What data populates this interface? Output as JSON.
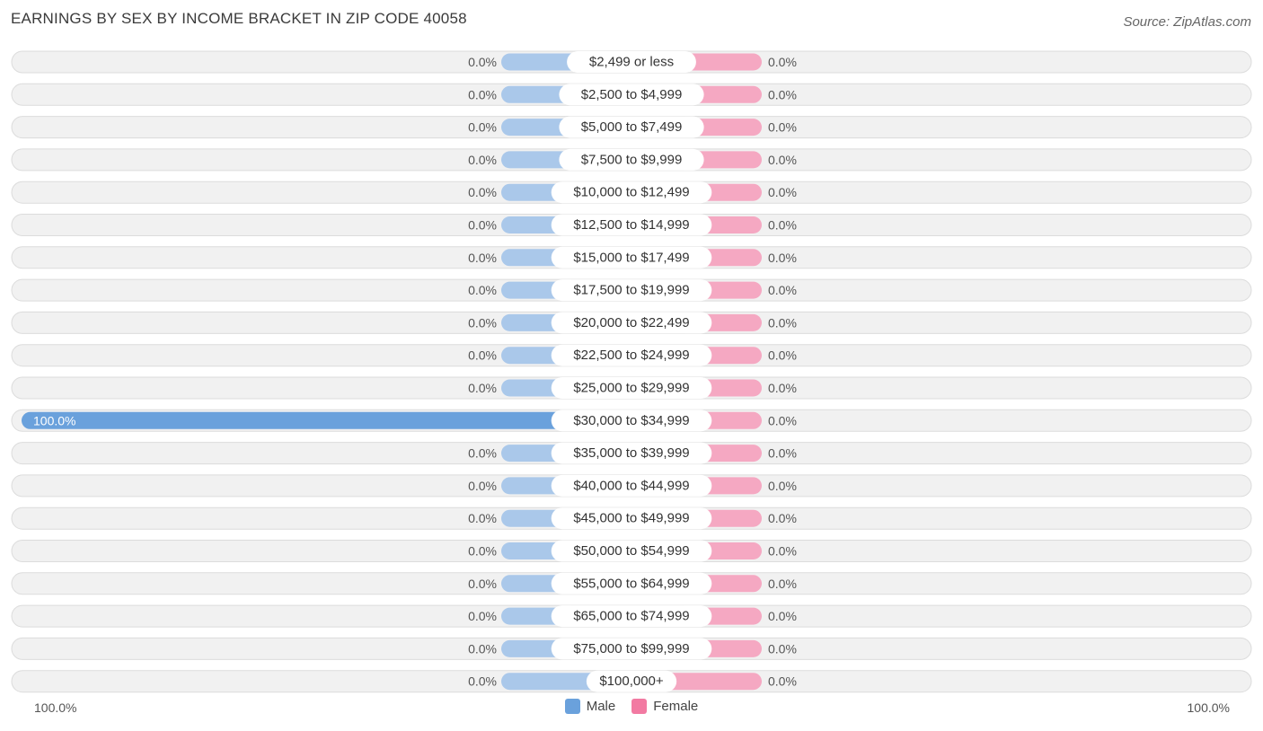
{
  "header": {
    "title": "EARNINGS BY SEX BY INCOME BRACKET IN ZIP CODE 40058",
    "source": "Source: ZipAtlas.com"
  },
  "colors": {
    "male_zero": "#aac8ea",
    "male_full": "#6aa1dc",
    "female": "#f5a8c2",
    "legend_male": "#6aa1dc",
    "legend_female": "#f27aa2",
    "row_bg": "#f1f1f1",
    "row_border": "#dcdcdc"
  },
  "axis": {
    "left_label": "100.0%",
    "right_label": "100.0%"
  },
  "legend": {
    "male_label": "Male",
    "female_label": "Female"
  },
  "chart_data": {
    "type": "bar",
    "orientation": "horizontal-diverging",
    "title": "EARNINGS BY SEX BY INCOME BRACKET IN ZIP CODE 40058",
    "xlim": [
      -100,
      100
    ],
    "categories": [
      "$2,499 or less",
      "$2,500 to $4,999",
      "$5,000 to $7,499",
      "$7,500 to $9,999",
      "$10,000 to $12,499",
      "$12,500 to $14,999",
      "$15,000 to $17,499",
      "$17,500 to $19,999",
      "$20,000 to $22,499",
      "$22,500 to $24,999",
      "$25,000 to $29,999",
      "$30,000 to $34,999",
      "$35,000 to $39,999",
      "$40,000 to $44,999",
      "$45,000 to $49,999",
      "$50,000 to $54,999",
      "$55,000 to $64,999",
      "$65,000 to $74,999",
      "$75,000 to $99,999",
      "$100,000+"
    ],
    "series": [
      {
        "name": "Male",
        "values": [
          0,
          0,
          0,
          0,
          0,
          0,
          0,
          0,
          0,
          0,
          0,
          100,
          0,
          0,
          0,
          0,
          0,
          0,
          0,
          0
        ],
        "labels": [
          "0.0%",
          "0.0%",
          "0.0%",
          "0.0%",
          "0.0%",
          "0.0%",
          "0.0%",
          "0.0%",
          "0.0%",
          "0.0%",
          "0.0%",
          "100.0%",
          "0.0%",
          "0.0%",
          "0.0%",
          "0.0%",
          "0.0%",
          "0.0%",
          "0.0%",
          "0.0%"
        ]
      },
      {
        "name": "Female",
        "values": [
          0,
          0,
          0,
          0,
          0,
          0,
          0,
          0,
          0,
          0,
          0,
          0,
          0,
          0,
          0,
          0,
          0,
          0,
          0,
          0
        ],
        "labels": [
          "0.0%",
          "0.0%",
          "0.0%",
          "0.0%",
          "0.0%",
          "0.0%",
          "0.0%",
          "0.0%",
          "0.0%",
          "0.0%",
          "0.0%",
          "0.0%",
          "0.0%",
          "0.0%",
          "0.0%",
          "0.0%",
          "0.0%",
          "0.0%",
          "0.0%",
          "0.0%"
        ]
      }
    ]
  }
}
